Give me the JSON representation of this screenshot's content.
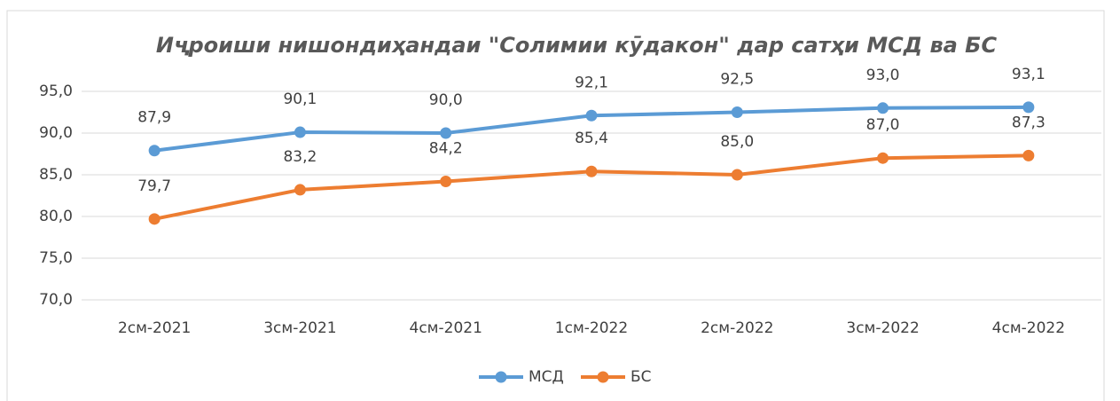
{
  "chart_data": {
    "type": "line",
    "title": "Иҷроиши нишондиҳандаи \"Солимии кӯдакон\" дар сатҳи МСД ва БС",
    "categories": [
      "2см-2021",
      "3см-2021",
      "4см-2021",
      "1см-2022",
      "2см-2022",
      "3см-2022",
      "4см-2022"
    ],
    "series": [
      {
        "name": "МСД",
        "color": "#5b9bd5",
        "values": [
          87.9,
          90.1,
          90.0,
          92.1,
          92.5,
          93.0,
          93.1
        ],
        "value_labels": [
          "87,9",
          "90,1",
          "90,0",
          "92,1",
          "92,5",
          "93,0",
          "93,1"
        ]
      },
      {
        "name": "БС",
        "color": "#ed7d31",
        "values": [
          79.7,
          83.2,
          84.2,
          85.4,
          85.0,
          87.0,
          87.3
        ],
        "value_labels": [
          "79,7",
          "83,2",
          "84,2",
          "85,4",
          "85,0",
          "87,0",
          "87,3"
        ]
      }
    ],
    "ylim": [
      70,
      95
    ],
    "yticks": [
      {
        "value": 70,
        "label": "70,0"
      },
      {
        "value": 75,
        "label": "75,0"
      },
      {
        "value": 80,
        "label": "80,0"
      },
      {
        "value": 85,
        "label": "85,0"
      },
      {
        "value": 90,
        "label": "90,0"
      },
      {
        "value": 95,
        "label": "95,0"
      }
    ],
    "grid": true,
    "legend": "bottom"
  }
}
